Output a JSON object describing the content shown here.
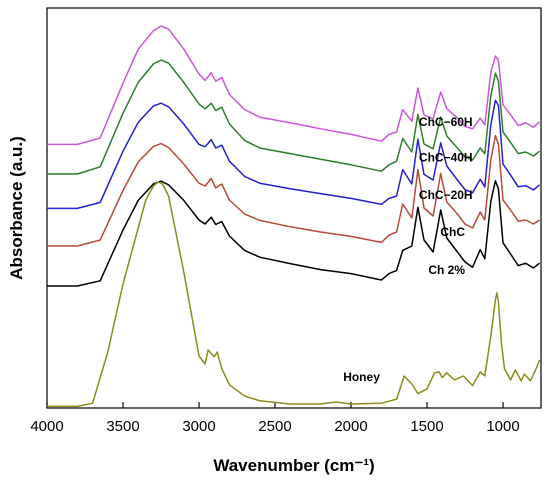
{
  "chart_data": {
    "type": "line",
    "xlabel": "Wavenumber (cm⁻¹)",
    "ylabel": "Absorbance (a.u.)",
    "xlim": [
      4000,
      750
    ],
    "x_reversed": true,
    "xticks": [
      4000,
      3500,
      3000,
      2500,
      2000,
      1500,
      1000
    ],
    "ylim": [
      0,
      1
    ],
    "yticks_shown": false,
    "grid": false,
    "legend": "none",
    "series": [
      {
        "name": "ChC−60H",
        "color": "#cc55dd",
        "points": [
          [
            4000,
            0.659
          ],
          [
            3800,
            0.659
          ],
          [
            3650,
            0.675
          ],
          [
            3500,
            0.812
          ],
          [
            3400,
            0.897
          ],
          [
            3300,
            0.943
          ],
          [
            3250,
            0.955
          ],
          [
            3200,
            0.947
          ],
          [
            3100,
            0.897
          ],
          [
            3000,
            0.835
          ],
          [
            2960,
            0.819
          ],
          [
            2920,
            0.838
          ],
          [
            2890,
            0.817
          ],
          [
            2850,
            0.826
          ],
          [
            2800,
            0.784
          ],
          [
            2700,
            0.746
          ],
          [
            2600,
            0.727
          ],
          [
            2400,
            0.713
          ],
          [
            2200,
            0.698
          ],
          [
            2000,
            0.684
          ],
          [
            1800,
            0.667
          ],
          [
            1750,
            0.684
          ],
          [
            1700,
            0.69
          ],
          [
            1660,
            0.746
          ],
          [
            1600,
            0.717
          ],
          [
            1560,
            0.8
          ],
          [
            1520,
            0.733
          ],
          [
            1460,
            0.723
          ],
          [
            1410,
            0.79
          ],
          [
            1370,
            0.748
          ],
          [
            1300,
            0.725
          ],
          [
            1250,
            0.704
          ],
          [
            1200,
            0.698
          ],
          [
            1150,
            0.725
          ],
          [
            1120,
            0.708
          ],
          [
            1080,
            0.838
          ],
          [
            1050,
            0.88
          ],
          [
            1030,
            0.87
          ],
          [
            1000,
            0.758
          ],
          [
            950,
            0.733
          ],
          [
            900,
            0.706
          ],
          [
            850,
            0.713
          ],
          [
            800,
            0.702
          ],
          [
            760,
            0.715
          ]
        ]
      },
      {
        "name": "ChC−40H",
        "color": "#2e7d2e",
        "points": [
          [
            4000,
            0.585
          ],
          [
            3800,
            0.585
          ],
          [
            3650,
            0.603
          ],
          [
            3500,
            0.737
          ],
          [
            3400,
            0.814
          ],
          [
            3300,
            0.86
          ],
          [
            3250,
            0.87
          ],
          [
            3200,
            0.862
          ],
          [
            3100,
            0.814
          ],
          [
            3000,
            0.76
          ],
          [
            2960,
            0.748
          ],
          [
            2920,
            0.762
          ],
          [
            2890,
            0.744
          ],
          [
            2850,
            0.752
          ],
          [
            2800,
            0.71
          ],
          [
            2700,
            0.669
          ],
          [
            2600,
            0.65
          ],
          [
            2400,
            0.636
          ],
          [
            2200,
            0.622
          ],
          [
            2000,
            0.608
          ],
          [
            1800,
            0.592
          ],
          [
            1750,
            0.608
          ],
          [
            1700,
            0.617
          ],
          [
            1660,
            0.674
          ],
          [
            1600,
            0.64
          ],
          [
            1560,
            0.734
          ],
          [
            1520,
            0.66
          ],
          [
            1460,
            0.648
          ],
          [
            1410,
            0.727
          ],
          [
            1370,
            0.68
          ],
          [
            1300,
            0.65
          ],
          [
            1250,
            0.628
          ],
          [
            1200,
            0.62
          ],
          [
            1150,
            0.65
          ],
          [
            1120,
            0.636
          ],
          [
            1080,
            0.78
          ],
          [
            1050,
            0.837
          ],
          [
            1030,
            0.818
          ],
          [
            1000,
            0.69
          ],
          [
            950,
            0.664
          ],
          [
            900,
            0.636
          ],
          [
            850,
            0.64
          ],
          [
            800,
            0.63
          ],
          [
            760,
            0.642
          ]
        ]
      },
      {
        "name": "ChC−20H",
        "color": "#2222cc",
        "points": [
          [
            4000,
            0.499
          ],
          [
            3800,
            0.499
          ],
          [
            3650,
            0.514
          ],
          [
            3500,
            0.642
          ],
          [
            3400,
            0.714
          ],
          [
            3300,
            0.755
          ],
          [
            3250,
            0.762
          ],
          [
            3200,
            0.753
          ],
          [
            3100,
            0.71
          ],
          [
            3000,
            0.659
          ],
          [
            2960,
            0.653
          ],
          [
            2920,
            0.671
          ],
          [
            2890,
            0.65
          ],
          [
            2850,
            0.657
          ],
          [
            2800,
            0.617
          ],
          [
            2700,
            0.579
          ],
          [
            2600,
            0.562
          ],
          [
            2400,
            0.548
          ],
          [
            2200,
            0.536
          ],
          [
            2000,
            0.524
          ],
          [
            1800,
            0.509
          ],
          [
            1750,
            0.524
          ],
          [
            1700,
            0.53
          ],
          [
            1660,
            0.596
          ],
          [
            1600,
            0.56
          ],
          [
            1560,
            0.672
          ],
          [
            1520,
            0.584
          ],
          [
            1460,
            0.57
          ],
          [
            1410,
            0.663
          ],
          [
            1370,
            0.605
          ],
          [
            1300,
            0.57
          ],
          [
            1250,
            0.546
          ],
          [
            1200,
            0.538
          ],
          [
            1150,
            0.572
          ],
          [
            1120,
            0.553
          ],
          [
            1080,
            0.708
          ],
          [
            1050,
            0.769
          ],
          [
            1030,
            0.757
          ],
          [
            1000,
            0.61
          ],
          [
            950,
            0.582
          ],
          [
            900,
            0.553
          ],
          [
            850,
            0.556
          ],
          [
            800,
            0.545
          ],
          [
            760,
            0.558
          ]
        ]
      },
      {
        "name": "ChC",
        "color": "#b84a3a",
        "points": [
          [
            4000,
            0.405
          ],
          [
            3800,
            0.405
          ],
          [
            3650,
            0.42
          ],
          [
            3500,
            0.544
          ],
          [
            3400,
            0.615
          ],
          [
            3300,
            0.654
          ],
          [
            3250,
            0.661
          ],
          [
            3200,
            0.651
          ],
          [
            3100,
            0.61
          ],
          [
            3000,
            0.562
          ],
          [
            2960,
            0.555
          ],
          [
            2920,
            0.574
          ],
          [
            2890,
            0.55
          ],
          [
            2850,
            0.56
          ],
          [
            2800,
            0.52
          ],
          [
            2700,
            0.485
          ],
          [
            2600,
            0.469
          ],
          [
            2400,
            0.453
          ],
          [
            2200,
            0.44
          ],
          [
            2000,
            0.429
          ],
          [
            1800,
            0.414
          ],
          [
            1750,
            0.432
          ],
          [
            1700,
            0.44
          ],
          [
            1660,
            0.51
          ],
          [
            1600,
            0.475
          ],
          [
            1560,
            0.596
          ],
          [
            1520,
            0.5
          ],
          [
            1460,
            0.48
          ],
          [
            1410,
            0.586
          ],
          [
            1370,
            0.515
          ],
          [
            1300,
            0.485
          ],
          [
            1250,
            0.46
          ],
          [
            1200,
            0.45
          ],
          [
            1150,
            0.49
          ],
          [
            1120,
            0.47
          ],
          [
            1080,
            0.62
          ],
          [
            1050,
            0.681
          ],
          [
            1030,
            0.66
          ],
          [
            1000,
            0.52
          ],
          [
            950,
            0.495
          ],
          [
            900,
            0.467
          ],
          [
            850,
            0.47
          ],
          [
            800,
            0.46
          ],
          [
            760,
            0.47
          ]
        ]
      },
      {
        "name": "Ch 2%",
        "color": "#000000",
        "points": [
          [
            4000,
            0.305
          ],
          [
            3800,
            0.305
          ],
          [
            3650,
            0.318
          ],
          [
            3500,
            0.445
          ],
          [
            3400,
            0.519
          ],
          [
            3300,
            0.56
          ],
          [
            3250,
            0.567
          ],
          [
            3200,
            0.558
          ],
          [
            3100,
            0.519
          ],
          [
            3000,
            0.47
          ],
          [
            2960,
            0.46
          ],
          [
            2920,
            0.477
          ],
          [
            2890,
            0.459
          ],
          [
            2850,
            0.466
          ],
          [
            2800,
            0.43
          ],
          [
            2700,
            0.394
          ],
          [
            2600,
            0.377
          ],
          [
            2400,
            0.361
          ],
          [
            2200,
            0.346
          ],
          [
            2000,
            0.336
          ],
          [
            1800,
            0.32
          ],
          [
            1750,
            0.336
          ],
          [
            1700,
            0.344
          ],
          [
            1660,
            0.394
          ],
          [
            1600,
            0.405
          ],
          [
            1560,
            0.502
          ],
          [
            1520,
            0.42
          ],
          [
            1460,
            0.39
          ],
          [
            1410,
            0.495
          ],
          [
            1370,
            0.425
          ],
          [
            1300,
            0.39
          ],
          [
            1250,
            0.365
          ],
          [
            1200,
            0.352
          ],
          [
            1150,
            0.396
          ],
          [
            1120,
            0.373
          ],
          [
            1080,
            0.516
          ],
          [
            1050,
            0.568
          ],
          [
            1030,
            0.548
          ],
          [
            1000,
            0.413
          ],
          [
            950,
            0.385
          ],
          [
            900,
            0.356
          ],
          [
            850,
            0.362
          ],
          [
            800,
            0.35
          ],
          [
            760,
            0.362
          ]
        ]
      },
      {
        "name": "Honey",
        "color": "#8b8b1f",
        "points": [
          [
            4000,
            0.004
          ],
          [
            3800,
            0.004
          ],
          [
            3700,
            0.012
          ],
          [
            3600,
            0.14
          ],
          [
            3500,
            0.31
          ],
          [
            3400,
            0.45
          ],
          [
            3350,
            0.52
          ],
          [
            3300,
            0.555
          ],
          [
            3270,
            0.565
          ],
          [
            3240,
            0.56
          ],
          [
            3200,
            0.53
          ],
          [
            3100,
            0.34
          ],
          [
            3000,
            0.13
          ],
          [
            2960,
            0.11
          ],
          [
            2940,
            0.145
          ],
          [
            2900,
            0.128
          ],
          [
            2880,
            0.14
          ],
          [
            2850,
            0.098
          ],
          [
            2800,
            0.058
          ],
          [
            2700,
            0.03
          ],
          [
            2600,
            0.018
          ],
          [
            2400,
            0.01
          ],
          [
            2200,
            0.01
          ],
          [
            2100,
            0.015
          ],
          [
            2000,
            0.01
          ],
          [
            1800,
            0.012
          ],
          [
            1700,
            0.022
          ],
          [
            1650,
            0.08
          ],
          [
            1600,
            0.06
          ],
          [
            1560,
            0.036
          ],
          [
            1500,
            0.048
          ],
          [
            1450,
            0.088
          ],
          [
            1420,
            0.09
          ],
          [
            1400,
            0.076
          ],
          [
            1370,
            0.088
          ],
          [
            1320,
            0.07
          ],
          [
            1260,
            0.08
          ],
          [
            1200,
            0.056
          ],
          [
            1150,
            0.09
          ],
          [
            1120,
            0.08
          ],
          [
            1080,
            0.18
          ],
          [
            1050,
            0.27
          ],
          [
            1040,
            0.288
          ],
          [
            1030,
            0.265
          ],
          [
            1010,
            0.16
          ],
          [
            990,
            0.098
          ],
          [
            950,
            0.07
          ],
          [
            920,
            0.095
          ],
          [
            880,
            0.068
          ],
          [
            860,
            0.085
          ],
          [
            820,
            0.068
          ],
          [
            780,
            0.1
          ],
          [
            760,
            0.12
          ]
        ]
      }
    ],
    "series_labels": [
      {
        "text": "ChC−60H",
        "at": [
          1200,
          0.705
        ]
      },
      {
        "text": "ChC−40H",
        "at": [
          1200,
          0.616
        ]
      },
      {
        "text": "ChC−20H",
        "at": [
          1200,
          0.523
        ]
      },
      {
        "text": "ChC",
        "at": [
          1250,
          0.43
        ]
      },
      {
        "text": "Ch 2%",
        "at": [
          1250,
          0.335
        ]
      },
      {
        "text": "Honey",
        "at": [
          1810,
          0.067
        ]
      }
    ]
  }
}
